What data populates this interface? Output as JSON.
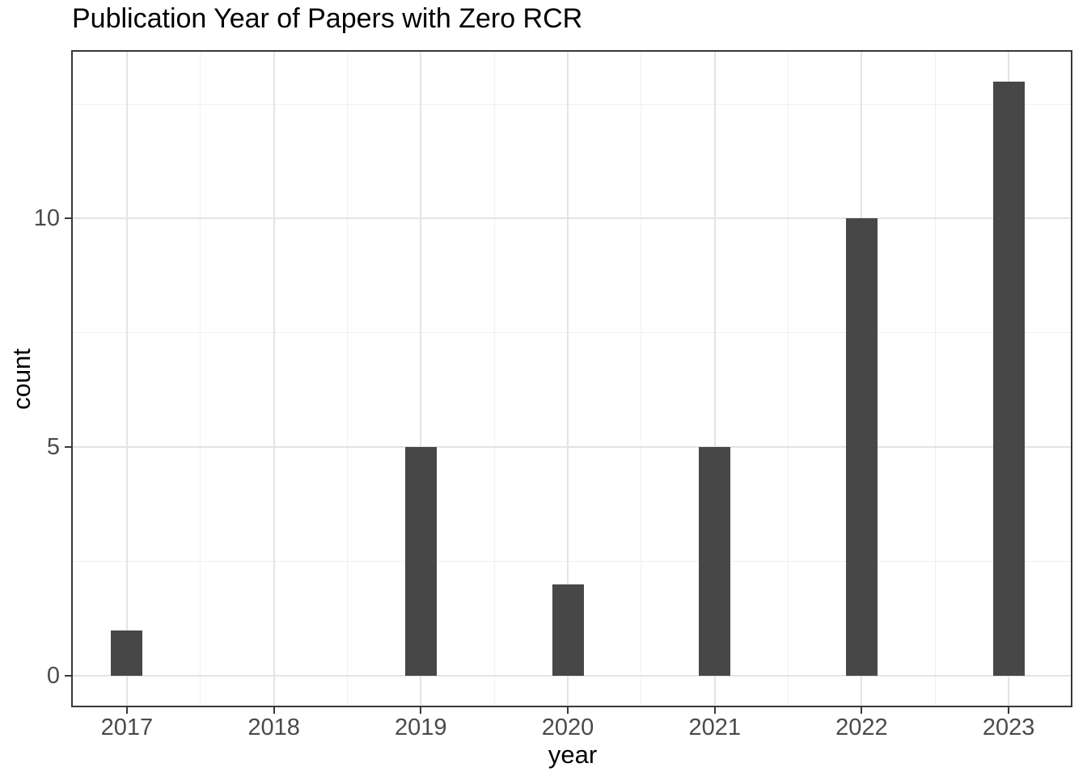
{
  "chart_data": {
    "type": "bar",
    "title": "Publication Year of Papers with Zero RCR",
    "xlabel": "year",
    "ylabel": "count",
    "categories": [
      2017,
      2018,
      2019,
      2020,
      2021,
      2022,
      2023
    ],
    "values": [
      1,
      0,
      5,
      2,
      5,
      10,
      13
    ],
    "x_tick_labels": [
      "2017",
      "2018",
      "2019",
      "2020",
      "2021",
      "2022",
      "2023"
    ],
    "x_tick_values": [
      2017,
      2018,
      2019,
      2020,
      2021,
      2022,
      2023
    ],
    "x_minor_values": [
      2017.5,
      2018.5,
      2019.5,
      2020.5,
      2021.5,
      2022.5
    ],
    "y_tick_labels": [
      "0",
      "5",
      "10"
    ],
    "y_tick_values": [
      0,
      5,
      10
    ],
    "y_minor_values": [
      2.5,
      7.5,
      12.5
    ],
    "xlim": [
      2016.632,
      2023.423
    ],
    "ylim": [
      -0.65,
      13.65
    ],
    "bar_width_years": 0.215,
    "grid": true,
    "legend": false,
    "colors": {
      "bar_fill": "#474747",
      "grid_major": "#e3e3e3",
      "grid_minor": "#f0f0f0",
      "panel_border": "#383838",
      "tick_mark": "#383838",
      "tick_label": "#4a4a4a",
      "axis_title": "#000000",
      "title": "#000000",
      "background": "#ffffff"
    }
  }
}
